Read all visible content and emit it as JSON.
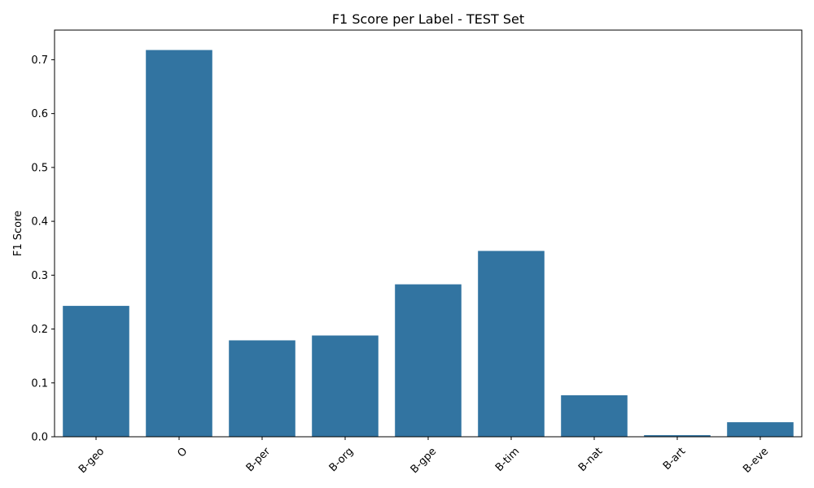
{
  "chart_data": {
    "type": "bar",
    "title": "F1 Score per Label - TEST Set",
    "xlabel": "",
    "ylabel": "F1 Score",
    "categories": [
      "B-geo",
      "O",
      "B-per",
      "B-org",
      "B-gpe",
      "B-tim",
      "B-nat",
      "B-art",
      "B-eve"
    ],
    "values": [
      0.243,
      0.718,
      0.179,
      0.188,
      0.283,
      0.345,
      0.077,
      0.003,
      0.027
    ],
    "ylim": [
      0,
      0.755
    ],
    "yticks": [
      "0.0",
      "0.1",
      "0.2",
      "0.3",
      "0.4",
      "0.5",
      "0.6",
      "0.7"
    ],
    "bar_color": "#3274a1",
    "grid": false
  }
}
